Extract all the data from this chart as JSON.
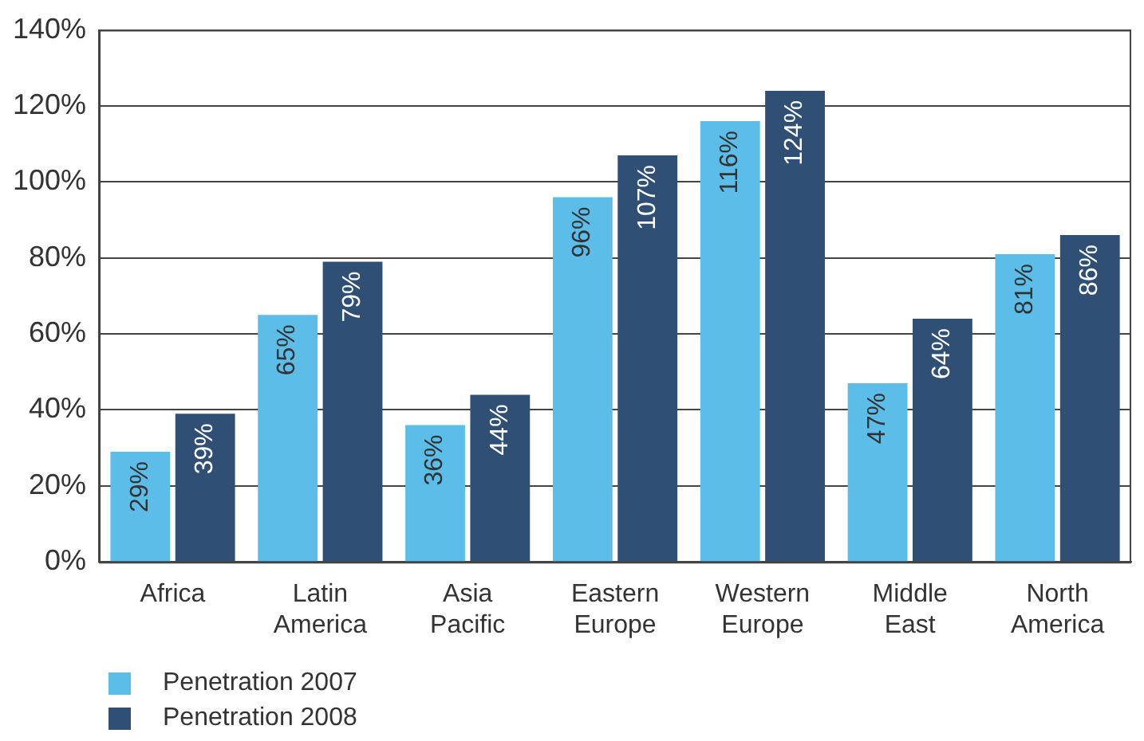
{
  "chart_data": {
    "type": "bar",
    "categories": [
      "Africa",
      "Latin America",
      "Asia Pacific",
      "Eastern Europe",
      "Western Europe",
      "Middle East",
      "North America"
    ],
    "series": [
      {
        "name": "Penetration 2007",
        "color": "#5bbde8",
        "values": [
          29,
          65,
          36,
          96,
          116,
          47,
          81
        ],
        "value_labels": [
          "29%",
          "65%",
          "36%",
          "96%",
          "116%",
          "47%",
          "81%"
        ]
      },
      {
        "name": "Penetration 2008",
        "color": "#2f4f75",
        "values": [
          39,
          79,
          44,
          107,
          124,
          64,
          86
        ],
        "value_labels": [
          "39%",
          "79%",
          "44%",
          "107%",
          "124%",
          "64%",
          "86%"
        ]
      }
    ],
    "ylim": [
      0,
      140
    ],
    "yticks": [
      {
        "value": 0,
        "label": "0%"
      },
      {
        "value": 20,
        "label": "20%"
      },
      {
        "value": 40,
        "label": "40%"
      },
      {
        "value": 60,
        "label": "60%"
      },
      {
        "value": 80,
        "label": "80%"
      },
      {
        "value": 100,
        "label": "100%"
      },
      {
        "value": 120,
        "label": "120%"
      },
      {
        "value": 140,
        "label": "140%"
      }
    ],
    "grid": "y",
    "legend": "bottom left"
  }
}
